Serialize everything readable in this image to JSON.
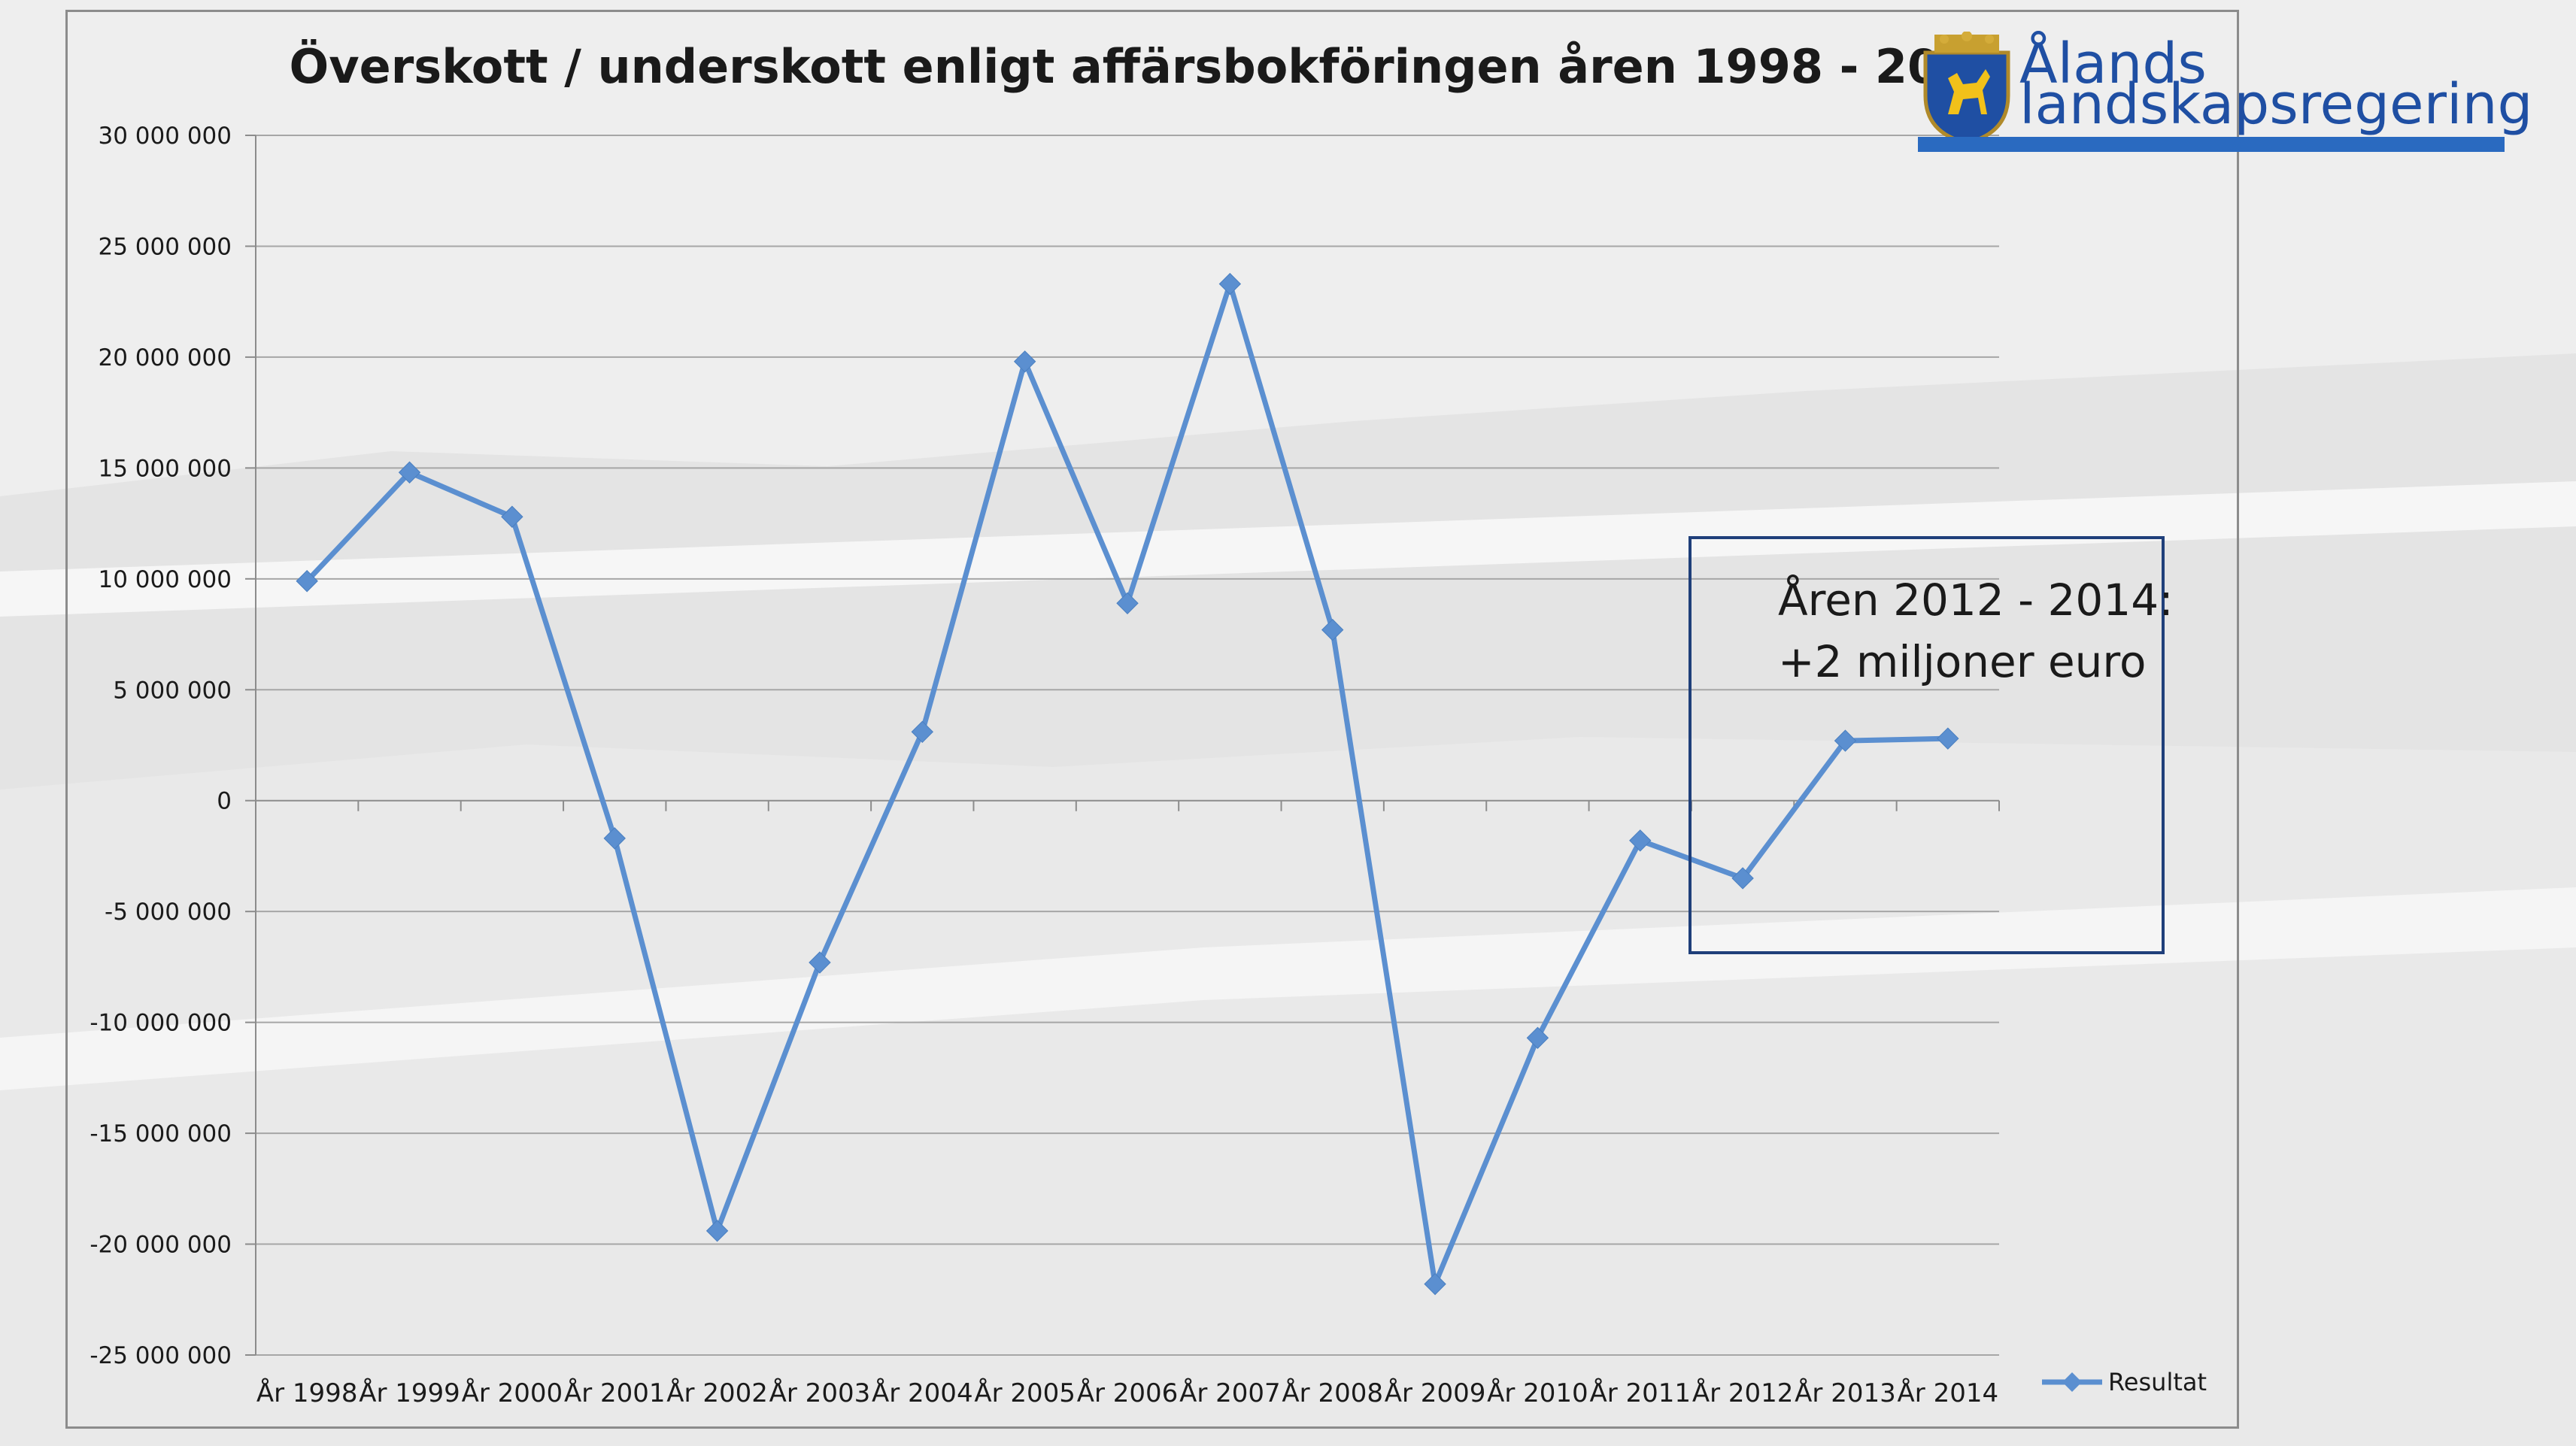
{
  "chart_data": {
    "type": "line",
    "title": "Överskott / underskott enligt affärsbokföringen åren 1998 - 2014",
    "categories": [
      "År 1998",
      "År 1999",
      "År 2000",
      "År 2001",
      "År 2002",
      "År 2003",
      "År 2004",
      "År 2005",
      "År 2006",
      "År 2007",
      "År 2008",
      "År 2009",
      "År 2010",
      "År 2011",
      "År 2012",
      "År 2013",
      "År 2014"
    ],
    "series": [
      {
        "name": "Resultat",
        "color": "#5b8fd0",
        "values": [
          9900000,
          14800000,
          12800000,
          -1700000,
          -19400000,
          -7300000,
          3100000,
          19800000,
          8900000,
          23300000,
          7700000,
          -21800000,
          -10700000,
          -1800000,
          -3500000,
          2700000,
          2800000
        ]
      }
    ],
    "ylim": [
      -25000000,
      30000000
    ],
    "ytick_step": 5000000,
    "yticks": [
      "30 000 000",
      "25 000 000",
      "20 000 000",
      "15 000 000",
      "10 000 000",
      "5 000 000",
      "0",
      "-5 000 000",
      "-10 000 000",
      "-15 000 000",
      "-20 000 000",
      "-25 000 000"
    ],
    "grid": true,
    "legend_position": "right"
  },
  "annotation": {
    "line1": "Åren 2012 - 2014:",
    "line2": "+2 miljoner euro"
  },
  "logo": {
    "line1": "Ålands",
    "line2": "landskapsregering"
  }
}
